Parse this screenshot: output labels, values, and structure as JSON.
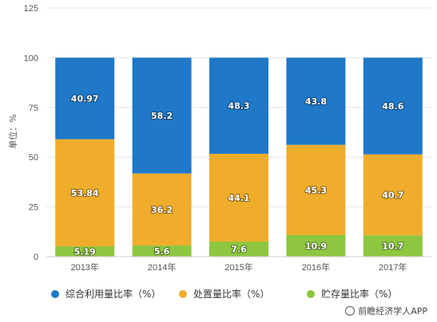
{
  "chart_data": {
    "type": "bar",
    "stacked": true,
    "categories": [
      "2013年",
      "2014年",
      "2015年",
      "2016年",
      "2017年"
    ],
    "series": [
      {
        "name": "贮存量比率（%）",
        "values": [
          5.19,
          5.6,
          7.6,
          10.9,
          10.7
        ],
        "color": "#8dc63f"
      },
      {
        "name": "处置量比率（%）",
        "values": [
          53.84,
          36.2,
          44.1,
          45.3,
          40.7
        ],
        "color": "#f0ad2b"
      },
      {
        "name": "综合利用量比率（%）",
        "values": [
          40.97,
          58.2,
          48.3,
          43.8,
          48.6
        ],
        "color": "#1f78c8"
      }
    ],
    "ylabel": "单位：%",
    "ylim": [
      0,
      125
    ],
    "yticks": [
      0,
      25,
      50,
      75,
      100,
      125
    ],
    "grid": true,
    "legend_position": "bottom"
  },
  "legend": [
    {
      "label": "综合利用量比率（%）",
      "color": "#1f78c8"
    },
    {
      "label": "处置量比率（%）",
      "color": "#f0ad2b"
    },
    {
      "label": "贮存量比率（%）",
      "color": "#8dc63f"
    }
  ],
  "source": "前瞻经济学人APP"
}
